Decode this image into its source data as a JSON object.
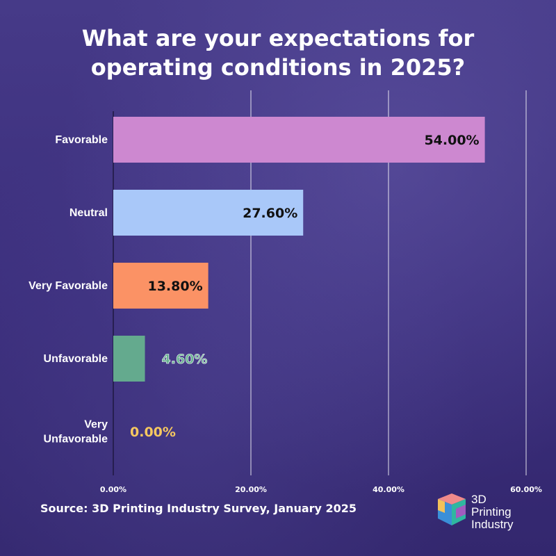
{
  "title_line1": "What are your expectations for",
  "title_line2": "operating conditions in 2025?",
  "source": "Source: 3D Printing Industry Survey, January 2025",
  "logo": {
    "line1": "3D",
    "line2": "Printing",
    "line3": "Industry",
    "icon": "cube-logo-icon"
  },
  "colors": {
    "background": "#3d2f7e",
    "gridline": "#ffffff",
    "text": "#ffffff"
  },
  "chart_data": {
    "type": "bar",
    "orientation": "horizontal",
    "title": "What are your expectations for operating conditions in 2025?",
    "categories": [
      [
        "Favorable"
      ],
      [
        "Neutral"
      ],
      [
        "Very Favorable"
      ],
      [
        "Unfavorable"
      ],
      [
        "Very",
        "Unfavorable"
      ]
    ],
    "values": [
      54.0,
      27.6,
      13.8,
      4.6,
      0.0
    ],
    "value_labels": [
      "54.00%",
      "27.60%",
      "13.80%",
      "4.60%",
      "0.00%"
    ],
    "bar_colors": [
      "#cd88d0",
      "#a9c8f9",
      "#fb9265",
      "#64aa8e",
      "#f6c860"
    ],
    "label_colors": [
      "#111111",
      "#111111",
      "#111111",
      "#6ab392",
      "#f6c860"
    ],
    "xlim": [
      0,
      60
    ],
    "x_ticks": [
      0,
      20,
      40,
      60
    ],
    "x_tick_labels": [
      "0.00%",
      "20.00%",
      "40.00%",
      "60.00%"
    ],
    "grid": true,
    "legend": "none"
  }
}
